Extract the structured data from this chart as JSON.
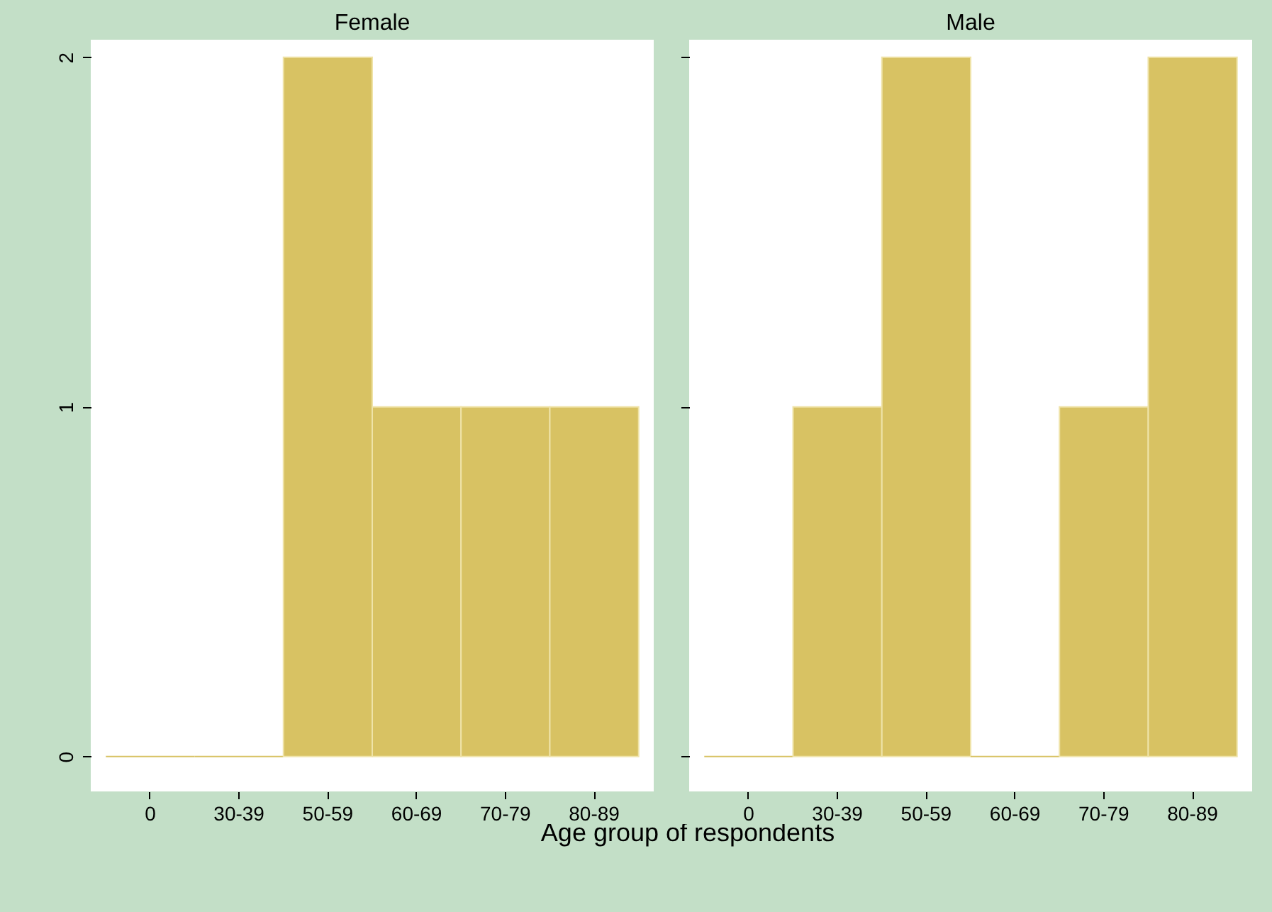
{
  "chart_data": [
    {
      "type": "bar",
      "title": "Female",
      "xlabel": "Age group of respondents",
      "categories": [
        "0",
        "30-39",
        "50-59",
        "60-69",
        "70-79",
        "80-89"
      ],
      "values": [
        0,
        0,
        2,
        1,
        1,
        1
      ],
      "color": "#d8c263",
      "ylim": [
        -0.1,
        2.05
      ],
      "yticks": [
        0,
        1,
        2
      ]
    },
    {
      "type": "bar",
      "title": "Male",
      "categories": [
        "0",
        "30-39",
        "50-59",
        "60-69",
        "70-79",
        "80-89"
      ],
      "values": [
        0,
        1,
        2,
        0,
        1,
        2
      ],
      "color": "#d8c263",
      "ylim": [
        -0.1,
        2.05
      ],
      "yticks": [
        0,
        1,
        2
      ],
      "tick_labels": "x"
    }
  ]
}
